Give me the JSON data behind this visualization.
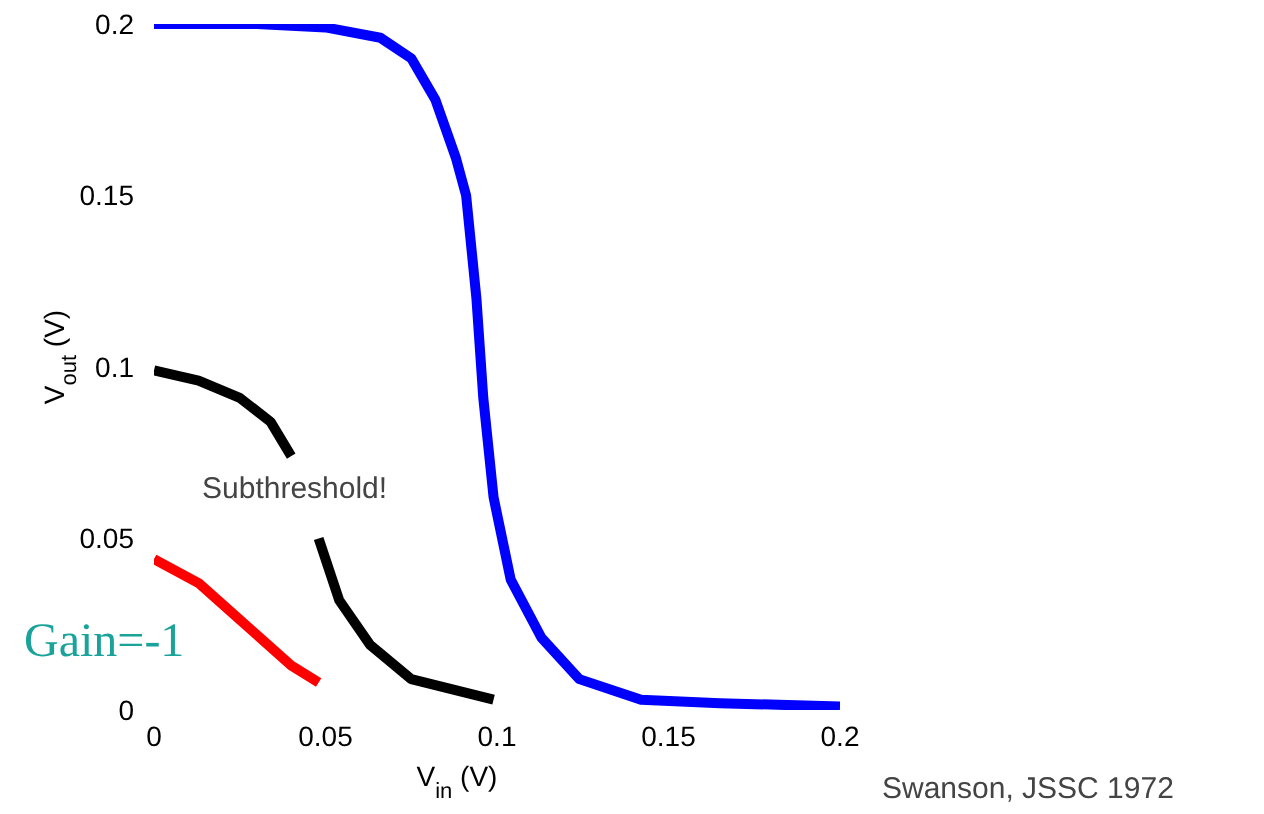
{
  "chart_data": {
    "type": "line",
    "xlabel": "V$_{in}$ (V)",
    "ylabel": "V$_{out}$ (V)",
    "xlim": [
      0,
      0.2
    ],
    "ylim": [
      0,
      0.2
    ],
    "xticks": [
      0,
      0.05,
      0.1,
      0.15,
      0.2
    ],
    "yticks": [
      0,
      0.05,
      0.1,
      0.15,
      0.2
    ],
    "grid": false,
    "legend": false,
    "marker": "none",
    "line_style": "solid",
    "annotations": [
      "Subthreshold!",
      "Gain=-1",
      "Swanson, JSSC 1972"
    ],
    "series": [
      {
        "color": "#0000ff",
        "x": [
          0,
          0.03,
          0.05,
          0.066,
          0.075,
          0.082,
          0.088,
          0.091,
          0.094,
          0.096,
          0.099,
          0.104,
          0.113,
          0.124,
          0.142,
          0.165,
          0.2
        ],
        "values": [
          0.2,
          0.2,
          0.199,
          0.196,
          0.19,
          0.178,
          0.161,
          0.15,
          0.12,
          0.091,
          0.062,
          0.038,
          0.021,
          0.009,
          0.003,
          0.002,
          0.001
        ]
      },
      {
        "color": "#000000",
        "x": [
          0,
          0.013,
          0.025,
          0.034,
          0.04,
          0.044,
          0.048,
          0.054,
          0.063,
          0.075,
          0.099
        ],
        "values": [
          0.099,
          0.096,
          0.091,
          0.084,
          0.074,
          null,
          0.05,
          0.032,
          0.019,
          0.009,
          0.003
        ]
      },
      {
        "color": "#ff0000",
        "x": [
          0,
          0.013,
          0.022,
          0.031,
          0.04,
          0.048
        ],
        "values": [
          0.044,
          0.037,
          0.029,
          0.021,
          0.013,
          0.008
        ]
      }
    ]
  }
}
